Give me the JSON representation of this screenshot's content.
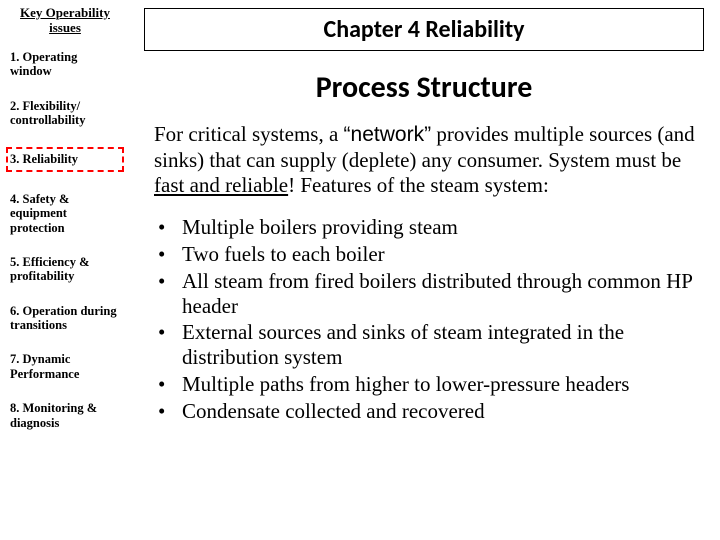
{
  "sidebar": {
    "header": "Key Operability issues",
    "items": [
      {
        "label": "1. Operating window",
        "highlight": false
      },
      {
        "label": "2. Flexibility/ controllability",
        "highlight": false
      },
      {
        "label": "3. Reliability",
        "highlight": true
      },
      {
        "label": "4. Safety & equipment protection",
        "highlight": false
      },
      {
        "label": "5. Efficiency & profitability",
        "highlight": false
      },
      {
        "label": "6. Operation during transitions",
        "highlight": false
      },
      {
        "label": "7. Dynamic Performance",
        "highlight": false
      },
      {
        "label": "8. Monitoring & diagnosis",
        "highlight": false
      }
    ]
  },
  "main": {
    "chapter_title": "Chapter 4 Reliability",
    "section_title": "Process Structure",
    "para_pre": "For critical systems, a ",
    "para_q1": "“",
    "para_network": "network",
    "para_q2": "”",
    "para_mid": " provides multiple sources (and sinks) that can supply (deplete) any consumer.  System must be ",
    "para_fast": "fast and reliable",
    "para_post": "! Features of the steam system:",
    "bullets": [
      "Multiple boilers providing steam",
      "Two fuels to each boiler",
      "All steam from fired boilers distributed through common HP header",
      "External sources and sinks of steam integrated in the distribution system",
      "Multiple paths from higher to lower-pressure headers",
      "Condensate collected and recovered"
    ]
  },
  "colors": {
    "highlight_border": "#ff0000",
    "text": "#000000",
    "background": "#ffffff"
  }
}
